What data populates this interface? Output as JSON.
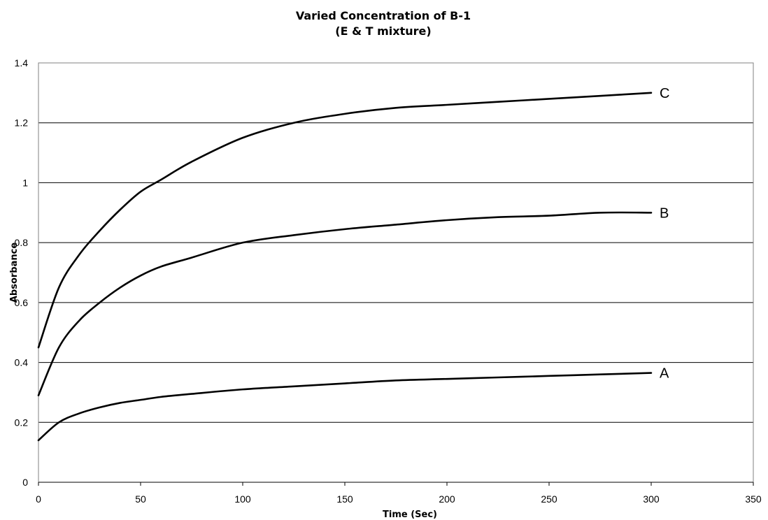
{
  "chart_data": {
    "type": "line",
    "title": "Varied Concentration of B-1",
    "subtitle": "(E & T mixture)",
    "xlabel": "Time (Sec)",
    "ylabel": "Absorbance",
    "xlim": [
      0,
      350
    ],
    "ylim": [
      0,
      1.4
    ],
    "x_ticks": [
      0,
      50,
      100,
      150,
      200,
      250,
      300,
      350
    ],
    "y_ticks": [
      0,
      0.2,
      0.4,
      0.6,
      0.8,
      1,
      1.2,
      1.4
    ],
    "x_tick_labels": [
      "0",
      "50",
      "100",
      "150",
      "200",
      "250",
      "300",
      "350"
    ],
    "y_tick_labels": [
      "0",
      "0.2",
      "0.4",
      "0.6",
      "0.8",
      "1",
      "1.2",
      "1.4"
    ],
    "grid": "horizontal",
    "legend": "none",
    "x": [
      0,
      10,
      20,
      30,
      40,
      50,
      60,
      75,
      100,
      125,
      150,
      175,
      200,
      225,
      250,
      275,
      300
    ],
    "series": [
      {
        "name": "C",
        "values": [
          0.45,
          0.65,
          0.76,
          0.84,
          0.91,
          0.97,
          1.01,
          1.07,
          1.15,
          1.2,
          1.23,
          1.25,
          1.26,
          1.27,
          1.28,
          1.29,
          1.3
        ]
      },
      {
        "name": "B",
        "values": [
          0.29,
          0.45,
          0.54,
          0.6,
          0.65,
          0.69,
          0.72,
          0.75,
          0.8,
          0.825,
          0.845,
          0.86,
          0.875,
          0.885,
          0.89,
          0.9,
          0.9
        ]
      },
      {
        "name": "A",
        "values": [
          0.14,
          0.2,
          0.23,
          0.25,
          0.265,
          0.275,
          0.285,
          0.295,
          0.31,
          0.32,
          0.33,
          0.34,
          0.345,
          0.35,
          0.355,
          0.36,
          0.365
        ]
      }
    ]
  }
}
